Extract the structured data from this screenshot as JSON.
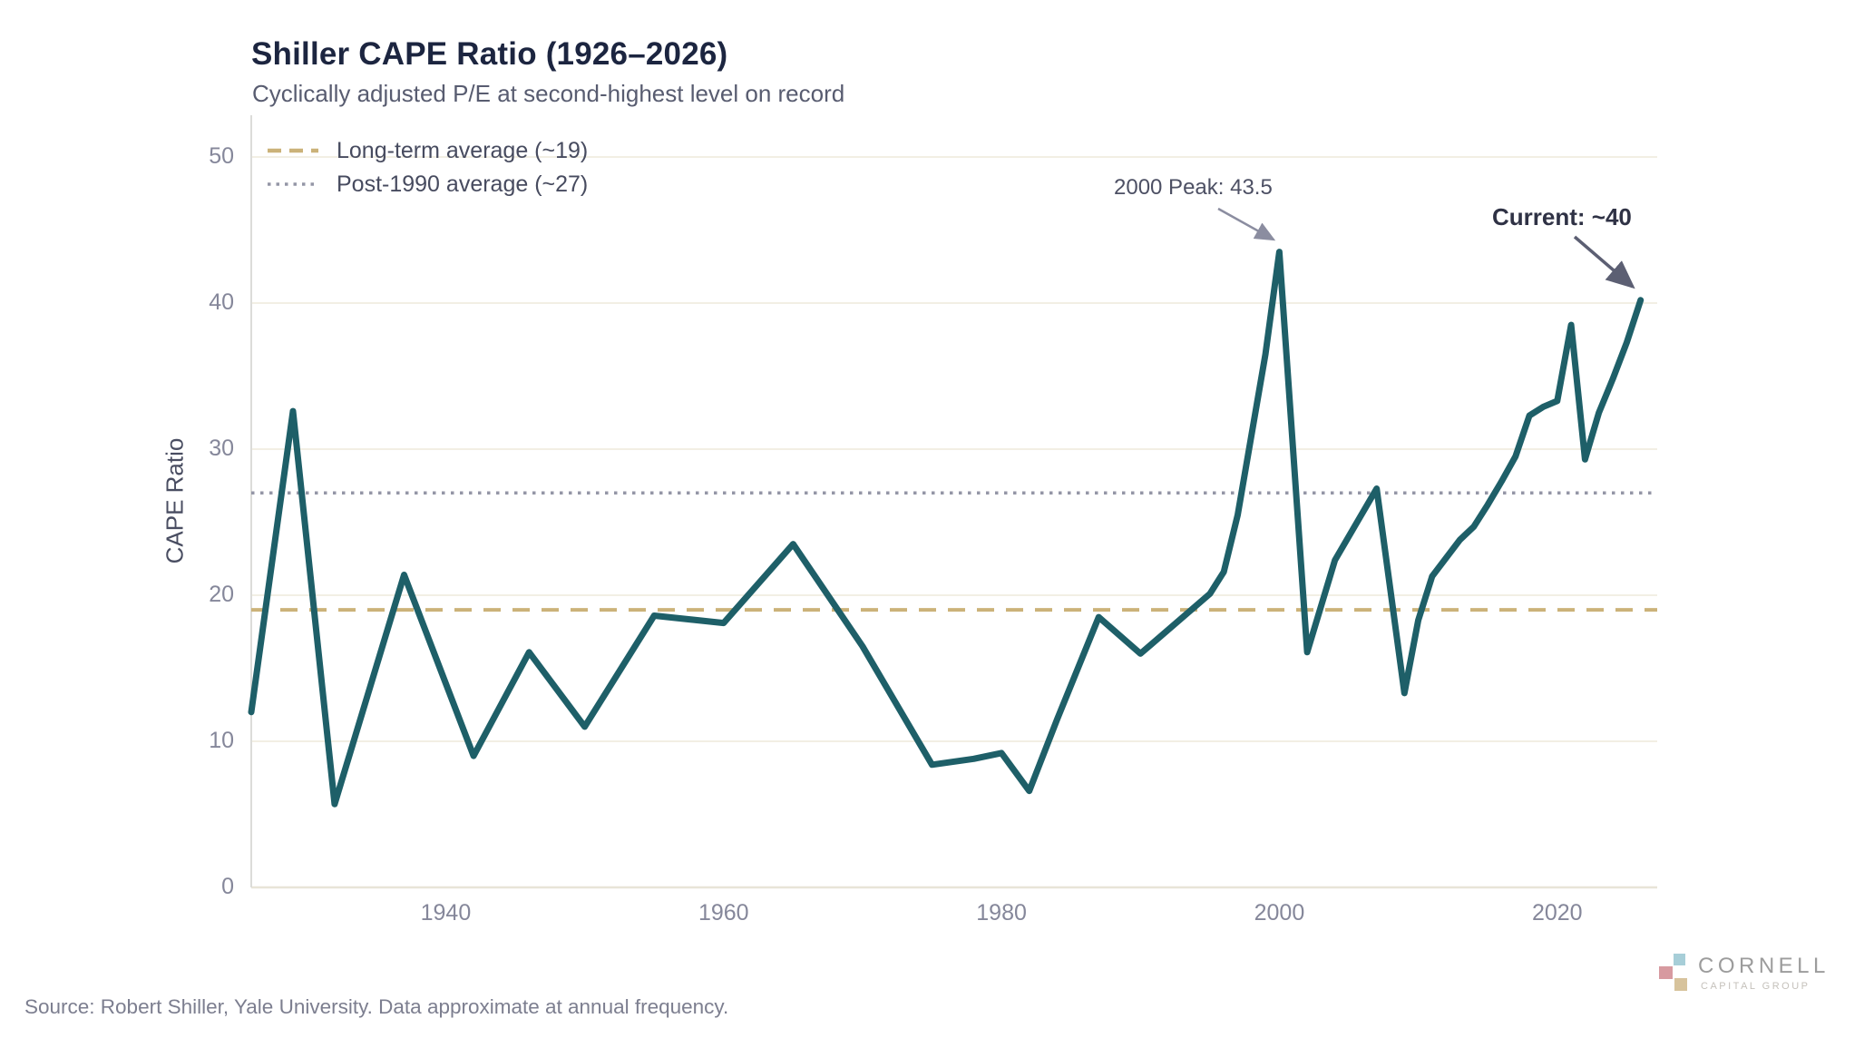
{
  "header": {
    "title": "Shiller CAPE Ratio (1926–2026)",
    "subtitle": "Cyclically adjusted P/E at second-highest level on record"
  },
  "axes": {
    "y_label": "CAPE Ratio",
    "y_ticks": [
      "0",
      "10",
      "20",
      "30",
      "40",
      "50"
    ],
    "x_ticks": [
      "1940",
      "1960",
      "1980",
      "2000",
      "2020"
    ]
  },
  "footer": {
    "source": "Source: Robert Shiller, Yale University. Data approximate at annual frequency."
  },
  "logo": {
    "name": "CORNELL",
    "tagline": "CAPITAL GROUP",
    "square_colors": [
      "#a7ced8",
      "#d79aa0",
      "#d7c39c"
    ]
  },
  "colors": {
    "line": "#1e5f68",
    "longterm_avg": "#cbb279",
    "post1990_avg": "#9496a6",
    "grid": "#f2efe4",
    "baseline": "#e8e4d8",
    "spine": "#dcdcd9",
    "arrow_2000": "#8b8da0",
    "arrow_current": "#5c5f73"
  },
  "chart_data": {
    "type": "line",
    "title": "Shiller CAPE Ratio (1926–2026)",
    "subtitle": "Cyclically adjusted P/E at second-highest level on record",
    "xlabel": "",
    "ylabel": "CAPE Ratio",
    "xlim": [
      1926,
      2027
    ],
    "ylim": [
      0,
      52
    ],
    "x_tick_years": [
      1940,
      1960,
      1980,
      2000,
      2020
    ],
    "y_tick_values": [
      0,
      10,
      20,
      30,
      40,
      50
    ],
    "grid": "horizontal",
    "legend_position": "top-left-inside",
    "series": [
      {
        "name": "Shiller CAPE",
        "color": "#1e5f68",
        "points": [
          [
            1926,
            12.0
          ],
          [
            1929,
            32.6
          ],
          [
            1932,
            5.7
          ],
          [
            1937,
            21.4
          ],
          [
            1942,
            9.0
          ],
          [
            1946,
            16.1
          ],
          [
            1950,
            11.0
          ],
          [
            1955,
            18.6
          ],
          [
            1960,
            18.1
          ],
          [
            1965,
            23.5
          ],
          [
            1970,
            16.5
          ],
          [
            1975,
            8.4
          ],
          [
            1978,
            8.8
          ],
          [
            1980,
            9.2
          ],
          [
            1982,
            6.6
          ],
          [
            1984,
            11.5
          ],
          [
            1987,
            18.5
          ],
          [
            1990,
            16.0
          ],
          [
            1995,
            20.1
          ],
          [
            1996,
            21.6
          ],
          [
            1997,
            25.5
          ],
          [
            1999,
            36.5
          ],
          [
            2000,
            43.5
          ],
          [
            2002,
            16.1
          ],
          [
            2004,
            22.4
          ],
          [
            2007,
            27.3
          ],
          [
            2009,
            13.3
          ],
          [
            2010,
            18.3
          ],
          [
            2011,
            21.3
          ],
          [
            2013,
            23.8
          ],
          [
            2014,
            24.7
          ],
          [
            2015,
            26.2
          ],
          [
            2016,
            27.8
          ],
          [
            2017,
            29.5
          ],
          [
            2018,
            32.3
          ],
          [
            2019,
            32.9
          ],
          [
            2020,
            33.3
          ],
          [
            2021,
            38.5
          ],
          [
            2022,
            29.3
          ],
          [
            2023,
            32.5
          ],
          [
            2024,
            34.8
          ],
          [
            2025,
            37.3
          ],
          [
            2026,
            40.2
          ]
        ]
      }
    ],
    "reference_lines": [
      {
        "label": "Long-term average (~19)",
        "value": 19,
        "style": "dashed",
        "color": "#cbb279"
      },
      {
        "label": "Post-1990 average (~27)",
        "value": 27,
        "style": "dotted",
        "color": "#9496a6"
      }
    ],
    "annotations": [
      {
        "text": "2000 Peak: 43.5",
        "year": 2000,
        "value": 43.5
      },
      {
        "text": "Current: ~40",
        "year": 2026,
        "value": 40.2
      }
    ]
  }
}
